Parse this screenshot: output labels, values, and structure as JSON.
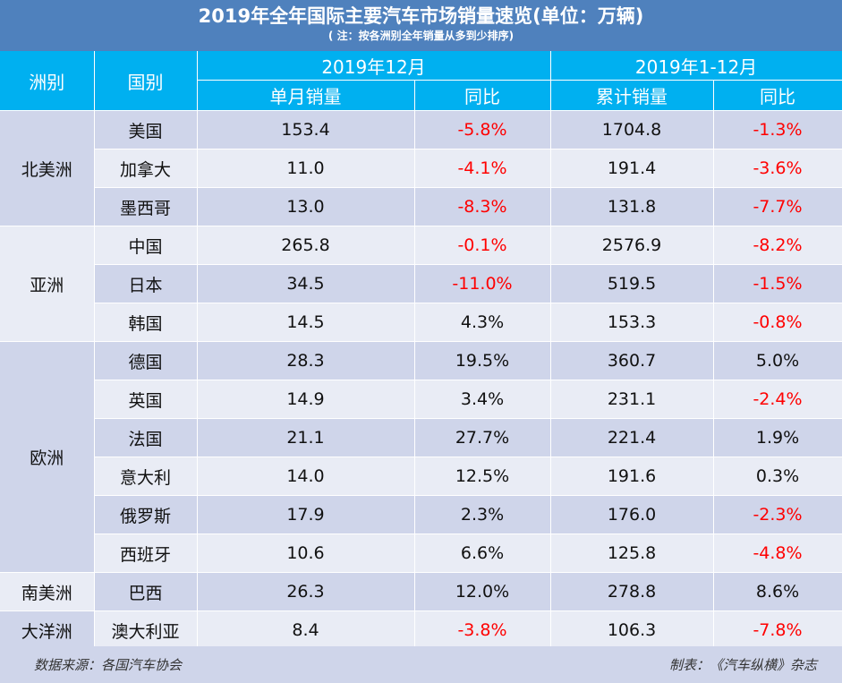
{
  "title": "2019年全年国际主要汽车市场销量速览(单位：万辆)",
  "note": "( 注：按各洲别全年销量从多到少排序)",
  "headers": {
    "continent": "洲别",
    "country": "国别",
    "period_dec": "2019年12月",
    "period_year": "2019年1-12月",
    "monthly_sales": "单月销量",
    "yoy": "同比",
    "cumulative_sales": "累计销量",
    "yoy2": "同比"
  },
  "continents": [
    "北美洲",
    "亚洲",
    "欧洲",
    "南美洲",
    "大洋洲"
  ],
  "rows": [
    {
      "country": "美国",
      "monthly": "153.4",
      "monthly_yoy": "-5.8%",
      "cumulative": "1704.8",
      "cumulative_yoy": "-1.3%"
    },
    {
      "country": "加拿大",
      "monthly": "11.0",
      "monthly_yoy": "-4.1%",
      "cumulative": "191.4",
      "cumulative_yoy": "-3.6%"
    },
    {
      "country": "墨西哥",
      "monthly": "13.0",
      "monthly_yoy": "-8.3%",
      "cumulative": "131.8",
      "cumulative_yoy": "-7.7%"
    },
    {
      "country": "中国",
      "monthly": "265.8",
      "monthly_yoy": "-0.1%",
      "cumulative": "2576.9",
      "cumulative_yoy": "-8.2%"
    },
    {
      "country": "日本",
      "monthly": "34.5",
      "monthly_yoy": "-11.0%",
      "cumulative": "519.5",
      "cumulative_yoy": "-1.5%"
    },
    {
      "country": "韩国",
      "monthly": "14.5",
      "monthly_yoy": "4.3%",
      "cumulative": "153.3",
      "cumulative_yoy": "-0.8%"
    },
    {
      "country": "德国",
      "monthly": "28.3",
      "monthly_yoy": "19.5%",
      "cumulative": "360.7",
      "cumulative_yoy": "5.0%"
    },
    {
      "country": "英国",
      "monthly": "14.9",
      "monthly_yoy": "3.4%",
      "cumulative": "231.1",
      "cumulative_yoy": "-2.4%"
    },
    {
      "country": "法国",
      "monthly": "21.1",
      "monthly_yoy": "27.7%",
      "cumulative": "221.4",
      "cumulative_yoy": "1.9%"
    },
    {
      "country": "意大利",
      "monthly": "14.0",
      "monthly_yoy": "12.5%",
      "cumulative": "191.6",
      "cumulative_yoy": "0.3%"
    },
    {
      "country": "俄罗斯",
      "monthly": "17.9",
      "monthly_yoy": "2.3%",
      "cumulative": "176.0",
      "cumulative_yoy": "-2.3%"
    },
    {
      "country": "西班牙",
      "monthly": "10.6",
      "monthly_yoy": "6.6%",
      "cumulative": "125.8",
      "cumulative_yoy": "-4.8%"
    },
    {
      "country": "巴西",
      "monthly": "26.3",
      "monthly_yoy": "12.0%",
      "cumulative": "278.8",
      "cumulative_yoy": "8.6%"
    },
    {
      "country": "澳大利亚",
      "monthly": "8.4",
      "monthly_yoy": "-3.8%",
      "cumulative": "106.3",
      "cumulative_yoy": "-7.8%"
    }
  ],
  "footer": {
    "source": "数据来源：各国汽车协会",
    "maker": "制表：《汽车纵横》杂志"
  },
  "colors": {
    "title_bg": "#4f81bd",
    "header_bg": "#00b0f0",
    "row_dark": "#cfd5ea",
    "row_light": "#e9ecf5",
    "negative": "#ff0000"
  }
}
